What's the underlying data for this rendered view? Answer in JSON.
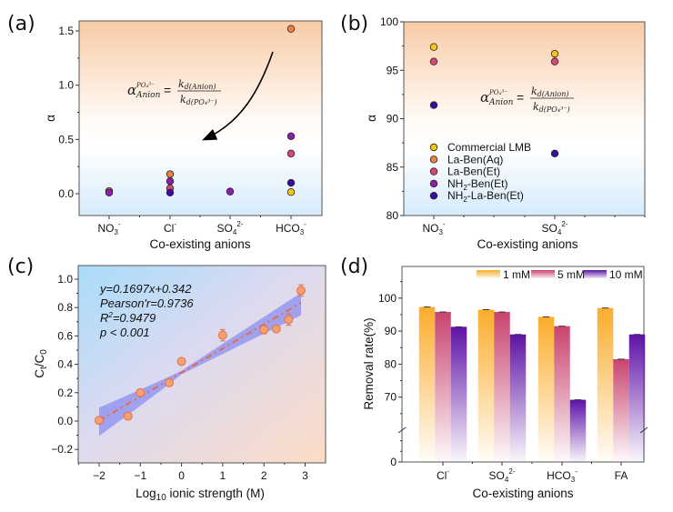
{
  "chart_data": [
    {
      "id": "a",
      "panel_label": "(a)",
      "type": "scatter",
      "xlabel": "Co-existing anions",
      "ylabel": "α",
      "categories": [
        "NO3-",
        "Cl-",
        "SO42-",
        "HCO3-"
      ],
      "category_labels": [
        {
          "base": "NO",
          "sub": "3",
          "sup": "-"
        },
        {
          "base": "Cl",
          "sub": "",
          "sup": "-"
        },
        {
          "base": "SO",
          "sub": "4",
          "sup": "2-"
        },
        {
          "base": "HCO",
          "sub": "3",
          "sup": "-"
        }
      ],
      "ylim": [
        -0.2,
        1.6
      ],
      "yticks": [
        0.0,
        0.5,
        1.0,
        1.5
      ],
      "ytick_labels": [
        "0.0",
        "0.5",
        "1.0",
        "1.5"
      ],
      "background": "gradient orange (top) to blue (bottom)",
      "annotation": {
        "formula": "α_Anion^{PO4^3-} = k_d(Anion) / k_d(PO4^3-)",
        "arrow": "curved arrow pointing down-left"
      },
      "series": [
        {
          "name": "Commercial LMB",
          "color": "#f5c518",
          "points": [
            {
              "cat": "HCO3-",
              "y": 0.015
            }
          ]
        },
        {
          "name": "La-Ben(Aq)",
          "color": "#f08040",
          "points": [
            {
              "cat": "NO3-",
              "y": 0.025
            },
            {
              "cat": "Cl-",
              "y": 0.18
            },
            {
              "cat": "HCO3-",
              "y": 1.52
            }
          ]
        },
        {
          "name": "La-Ben(Et)",
          "color": "#d9467a",
          "points": [
            {
              "cat": "Cl-",
              "y": 0.05
            },
            {
              "cat": "HCO3-",
              "y": 0.37
            }
          ]
        },
        {
          "name": "NH2-Ben(Et)",
          "color": "#8e1fae",
          "points": [
            {
              "cat": "NO3-",
              "y": 0.01
            },
            {
              "cat": "Cl-",
              "y": 0.115
            },
            {
              "cat": "SO42-",
              "y": 0.02
            },
            {
              "cat": "HCO3-",
              "y": 0.53
            }
          ]
        },
        {
          "name": "NH2-La-Ben(Et)",
          "color": "#3a0ca3",
          "points": [
            {
              "cat": "Cl-",
              "y": 0.01
            },
            {
              "cat": "HCO3-",
              "y": 0.1
            }
          ]
        }
      ]
    },
    {
      "id": "b",
      "panel_label": "(b)",
      "type": "scatter",
      "xlabel": "Co-existing anions",
      "ylabel": "α",
      "categories": [
        "NO3-",
        "SO42-"
      ],
      "category_labels": [
        {
          "base": "NO",
          "sub": "3",
          "sup": "-"
        },
        {
          "base": "SO",
          "sub": "4",
          "sup": "2-"
        }
      ],
      "ylim": [
        80,
        100
      ],
      "yticks": [
        80,
        85,
        90,
        95,
        100
      ],
      "ytick_labels": [
        "80",
        "85",
        "90",
        "95",
        "100"
      ],
      "legend_position": "lower-left",
      "annotation": {
        "formula": "α_Anion^{PO4^3-} = k_d(Anion) / k_d(PO4^3-)"
      },
      "legend": [
        {
          "name": "Commercial LMB",
          "color": "#f5c518",
          "base": "Commercial LMB",
          "sub": "",
          "tail": ""
        },
        {
          "name": "La-Ben(Aq)",
          "color": "#f08040",
          "base": "La-Ben(Aq)",
          "sub": "",
          "tail": ""
        },
        {
          "name": "La-Ben(Et)",
          "color": "#d9467a",
          "base": "La-Ben(Et)",
          "sub": "",
          "tail": ""
        },
        {
          "name": "NH2-Ben(Et)",
          "color": "#8e1fae",
          "base": "NH",
          "sub": "2",
          "tail": "-Ben(Et)"
        },
        {
          "name": "NH2-La-Ben(Et)",
          "color": "#3a0ca3",
          "base": "NH",
          "sub": "2",
          "tail": "-La-Ben(Et)"
        }
      ],
      "series": [
        {
          "name": "Commercial LMB",
          "color": "#f5c518",
          "points": [
            {
              "cat": "NO3-",
              "y": 97.4
            },
            {
              "cat": "SO42-",
              "y": 96.7
            }
          ]
        },
        {
          "name": "La-Ben(Et)",
          "color": "#d9467a",
          "points": [
            {
              "cat": "NO3-",
              "y": 95.9
            },
            {
              "cat": "SO42-",
              "y": 95.9
            }
          ]
        },
        {
          "name": "NH2-La-Ben(Et)",
          "color": "#3a0ca3",
          "points": [
            {
              "cat": "NO3-",
              "y": 91.4
            },
            {
              "cat": "SO42-",
              "y": 86.4
            }
          ]
        }
      ]
    },
    {
      "id": "c",
      "panel_label": "(c)",
      "type": "scatter",
      "xlabel": "Log10 ionic strength (M)",
      "xlabel_parts": {
        "base": "Log",
        "sub": "10",
        "tail": " ionic strength (M)"
      },
      "ylabel": "Ct/C0",
      "ylabel_parts": {
        "a": "C",
        "a_sub": "t",
        "b": "/C",
        "b_sub": "0"
      },
      "xlim": [
        -2.5,
        3.5
      ],
      "ylim": [
        -0.3,
        1.1
      ],
      "xticks": [
        -2,
        -1,
        0,
        1,
        2,
        3
      ],
      "xtick_labels": [
        "−2",
        "−1",
        "0",
        "1",
        "2",
        "3"
      ],
      "yticks": [
        -0.2,
        0.0,
        0.2,
        0.4,
        0.6,
        0.8,
        1.0
      ],
      "ytick_labels": [
        "−0.2",
        "0.0",
        "0.2",
        "0.4",
        "0.6",
        "0.8",
        "1.0"
      ],
      "points": [
        {
          "x": -2.0,
          "y": 0.005,
          "err": 0.01
        },
        {
          "x": -1.3,
          "y": 0.035,
          "err": 0.01
        },
        {
          "x": -1.0,
          "y": 0.2,
          "err": 0.015
        },
        {
          "x": -0.3,
          "y": 0.27,
          "err": 0.01
        },
        {
          "x": 0.0,
          "y": 0.42,
          "err": 0.01
        },
        {
          "x": 1.0,
          "y": 0.605,
          "err": 0.04
        },
        {
          "x": 2.0,
          "y": 0.645,
          "err": 0.03
        },
        {
          "x": 2.3,
          "y": 0.65,
          "err": 0.01
        },
        {
          "x": 2.6,
          "y": 0.715,
          "err": 0.04
        },
        {
          "x": 2.9,
          "y": 0.92,
          "err": 0.04
        }
      ],
      "fit": {
        "slope": 0.1697,
        "intercept": 0.342,
        "x_range": [
          -2.0,
          2.9
        ],
        "style": "dash-dot",
        "color": "#e8673c"
      },
      "confidence_band": {
        "lower": [
          [
            -2.0,
            -0.105
          ],
          [
            2.9,
            0.745
          ]
        ],
        "upper": [
          [
            -2.0,
            0.095
          ],
          [
            2.9,
            0.905
          ]
        ],
        "color": "#8b8df0"
      },
      "stats": [
        "y=0.1697x+0.342",
        "Pearson'r=0.9736",
        "R2=0.9479",
        "p < 0.001"
      ],
      "marker_color": "#f4a070",
      "background": "gradient blue (top-left) to peach (bottom-right)"
    },
    {
      "id": "d",
      "panel_label": "(d)",
      "type": "bar",
      "xlabel": "Co-existing anions",
      "ylabel": "Removal rate(%)",
      "categories": [
        "Cl-",
        "SO42-",
        "HCO3-",
        "FA"
      ],
      "category_labels": [
        {
          "base": "Cl",
          "sub": "",
          "sup": "-"
        },
        {
          "base": "SO",
          "sub": "4",
          "sup": "2-"
        },
        {
          "base": "HCO",
          "sub": "3",
          "sup": "-"
        },
        {
          "base": "FA",
          "sub": "",
          "sup": ""
        }
      ],
      "ylim": [
        0,
        108
      ],
      "axis_break": [
        0,
        60
      ],
      "yticks": [
        0,
        70,
        80,
        90,
        100
      ],
      "ytick_labels": [
        "0",
        "70",
        "80",
        "90",
        "100"
      ],
      "legend_position": "top-right",
      "series": [
        {
          "name": "1 mM",
          "color": "#fbac2c",
          "values": [
            97.3,
            96.5,
            94.3,
            97.0
          ]
        },
        {
          "name": "5 mM",
          "color": "#c8446e",
          "values": [
            95.8,
            95.8,
            91.5,
            81.5
          ]
        },
        {
          "name": "10 mM",
          "color": "#5d12a6",
          "values": [
            91.3,
            89.0,
            69.2,
            89.0
          ]
        }
      ]
    }
  ]
}
